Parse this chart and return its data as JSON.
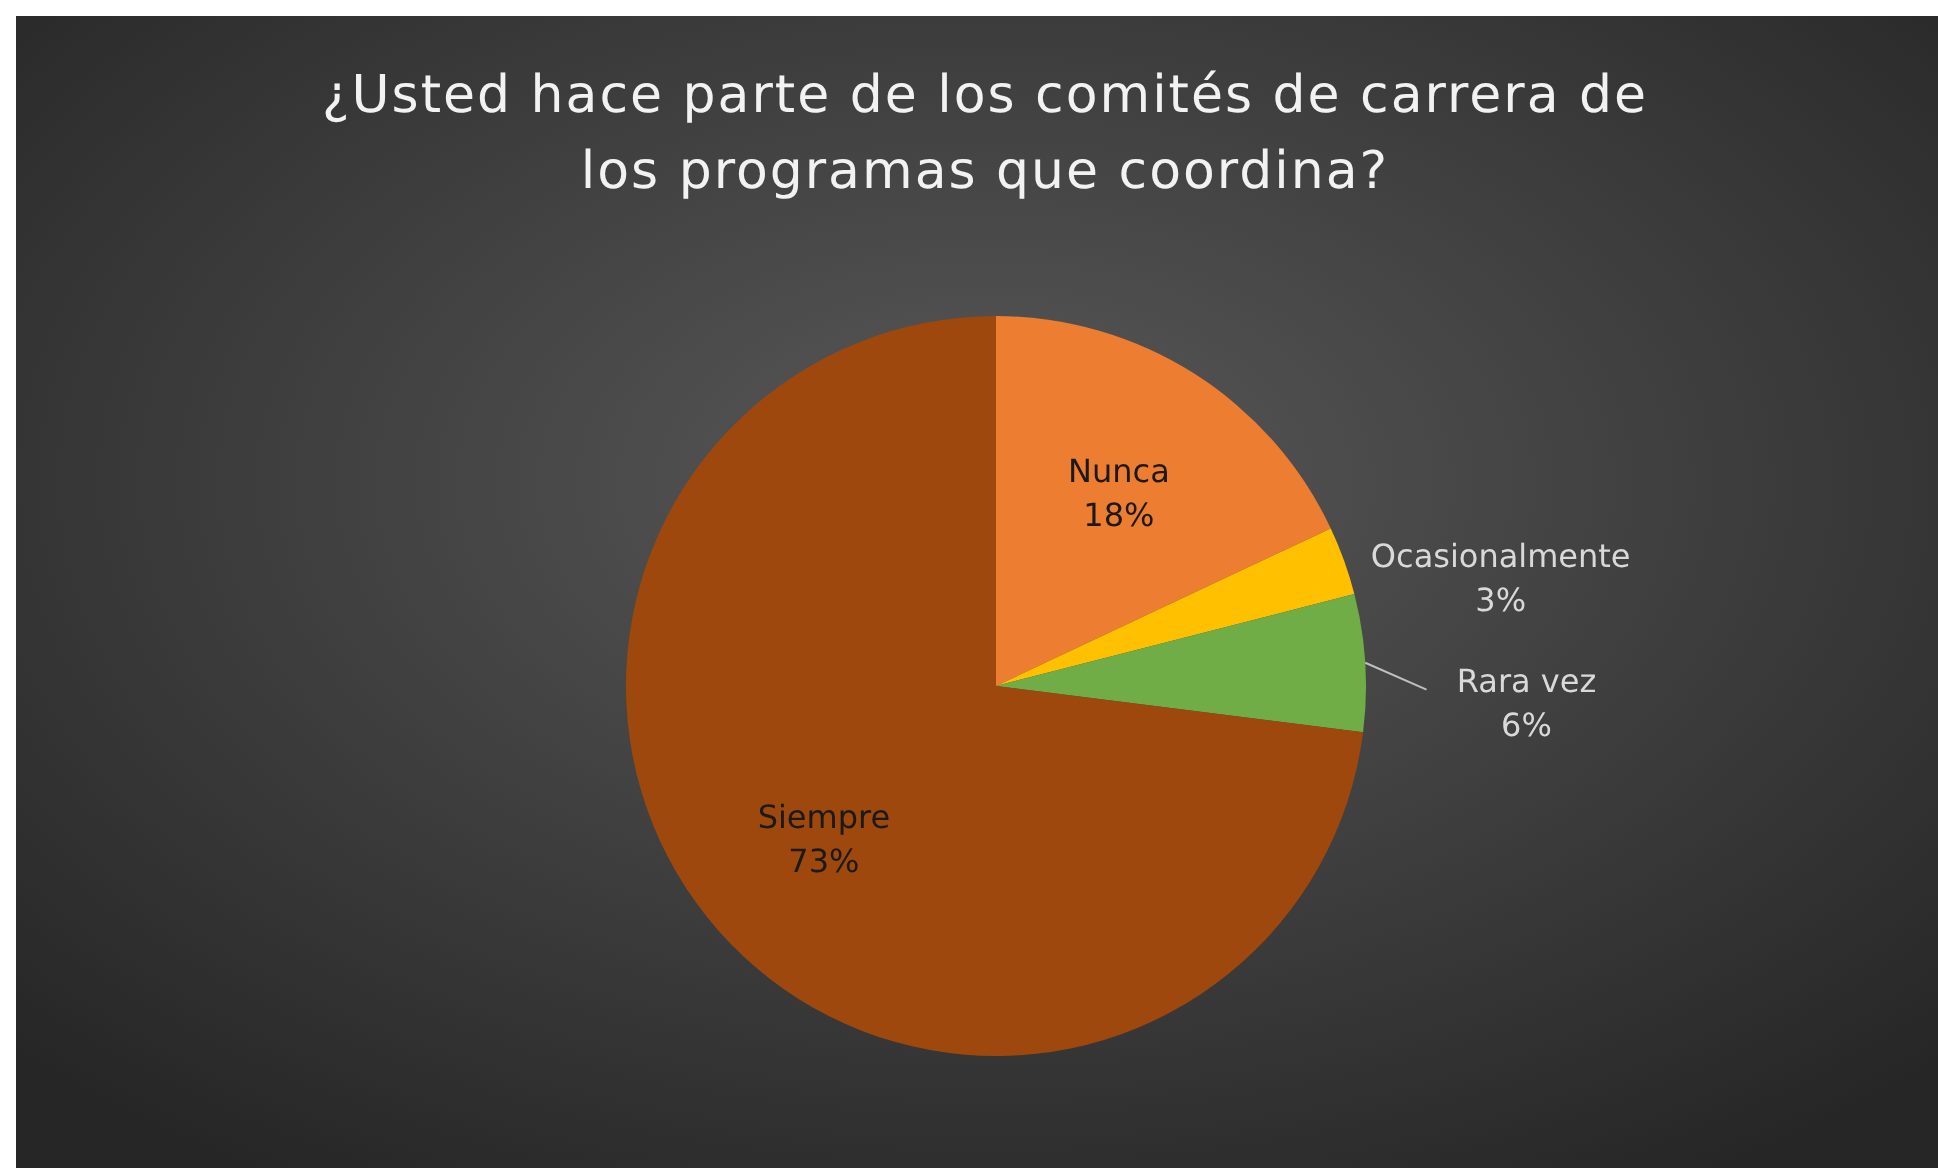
{
  "chart_data": {
    "type": "pie",
    "title": "¿Usted hace parte de los comités de carrera de los programas que coordina?",
    "categories": [
      "Nunca",
      "Ocasionalmente",
      "Rara vez",
      "Siempre"
    ],
    "values": [
      18,
      3,
      6,
      73
    ],
    "value_labels": [
      "18%",
      "3%",
      "6%",
      "73%"
    ],
    "colors": [
      "#ed7d31",
      "#ffc000",
      "#70ad47",
      "#9e480e"
    ],
    "legend": false
  }
}
